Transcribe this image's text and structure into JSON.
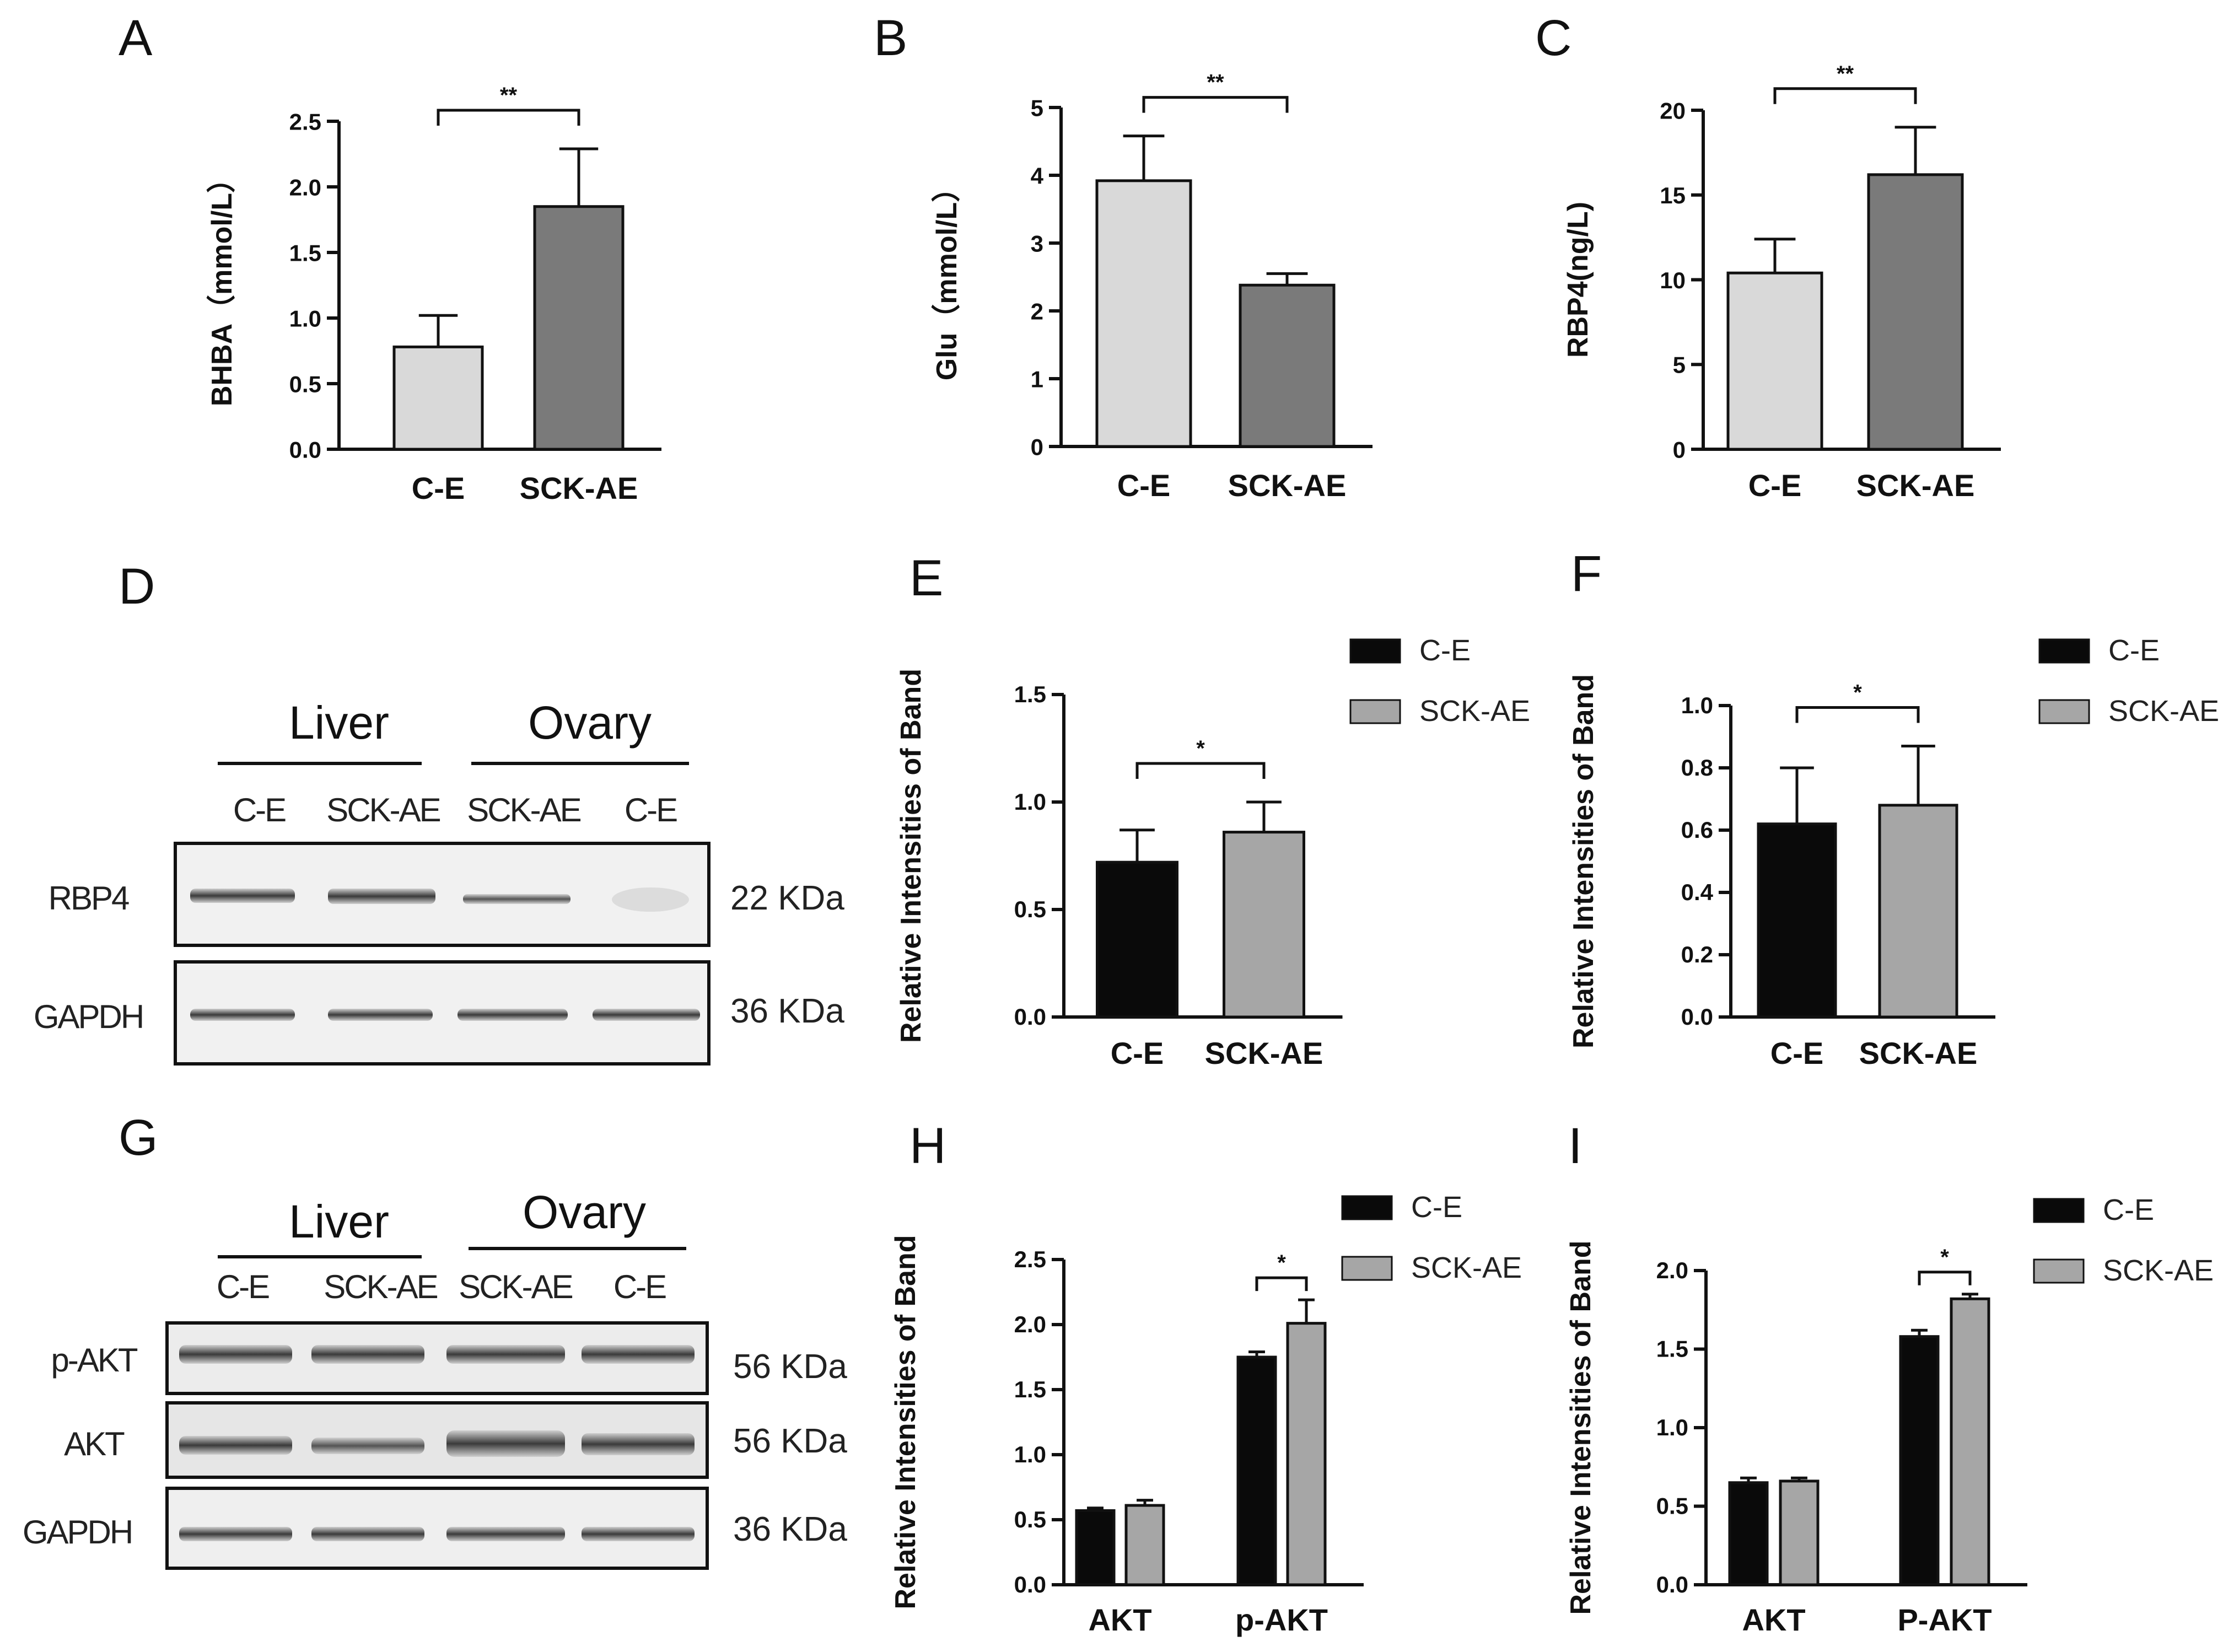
{
  "panel_labels": {
    "A": "A",
    "B": "B",
    "C": "C",
    "D": "D",
    "E": "E",
    "F": "F",
    "G": "G",
    "H": "H",
    "I": "I"
  },
  "colors": {
    "ce_gray": "#d9d9d9",
    "sck_gray": "#7a7a7a",
    "ce_black": "#0a0a0a",
    "sck_light": "#a6a6a6",
    "axis": "#111111"
  },
  "blot_D": {
    "tissues": [
      "Liver",
      "Ovary"
    ],
    "lanes": [
      "C-E",
      "SCK-AE",
      "SCK-AE",
      "C-E"
    ],
    "rows": [
      {
        "label": "RBP4",
        "kda": "22 KDa"
      },
      {
        "label": "GAPDH",
        "kda": "36 KDa"
      }
    ]
  },
  "blot_G": {
    "tissues": [
      "Liver",
      "Ovary"
    ],
    "lanes": [
      "C-E",
      "SCK-AE",
      "SCK-AE",
      "C-E"
    ],
    "rows": [
      {
        "label": "p-AKT",
        "kda": "56 KDa"
      },
      {
        "label": "AKT",
        "kda": "56 KDa"
      },
      {
        "label": "GAPDH",
        "kda": "36 KDa"
      }
    ]
  },
  "chart_data": [
    {
      "id": "A",
      "type": "bar",
      "categories": [
        "C-E",
        "SCK-AE"
      ],
      "values": [
        0.78,
        1.85
      ],
      "errors": [
        0.24,
        0.44
      ],
      "ylabel": "BHBA（mmol/L）",
      "ylim": [
        0,
        2.5
      ],
      "yticks": [
        "0.0",
        "0.5",
        "1.0",
        "1.5",
        "2.0",
        "2.5"
      ],
      "significance": "**"
    },
    {
      "id": "B",
      "type": "bar",
      "categories": [
        "C-E",
        "SCK-AE"
      ],
      "values": [
        3.92,
        2.38
      ],
      "errors": [
        0.66,
        0.17
      ],
      "ylabel": "Glu（mmol/L）",
      "ylim": [
        0,
        5
      ],
      "yticks": [
        "0",
        "1",
        "2",
        "3",
        "4",
        "5"
      ],
      "significance": "**"
    },
    {
      "id": "C",
      "type": "bar",
      "categories": [
        "C-E",
        "SCK-AE"
      ],
      "values": [
        10.4,
        16.2
      ],
      "errors": [
        2.0,
        2.8
      ],
      "ylabel": "RBP4(ng/L)",
      "ylim": [
        0,
        20
      ],
      "yticks": [
        "0",
        "5",
        "10",
        "15",
        "20"
      ],
      "significance": "**"
    },
    {
      "id": "E",
      "type": "bar",
      "categories": [
        "C-E",
        "SCK-AE"
      ],
      "values": [
        0.72,
        0.86
      ],
      "errors": [
        0.15,
        0.14
      ],
      "ylabel": "Relative Intensities of Band",
      "ylim": [
        0,
        1.5
      ],
      "yticks": [
        "0.0",
        "0.5",
        "1.0",
        "1.5"
      ],
      "significance": "*",
      "legend": [
        "C-E",
        "SCK-AE"
      ]
    },
    {
      "id": "F",
      "type": "bar",
      "categories": [
        "C-E",
        "SCK-AE"
      ],
      "values": [
        0.62,
        0.68
      ],
      "errors": [
        0.18,
        0.19
      ],
      "ylabel": "Relative Intensities of Band",
      "ylim": [
        0,
        1.0
      ],
      "yticks": [
        "0.0",
        "0.2",
        "0.4",
        "0.6",
        "0.8",
        "1.0"
      ],
      "significance": "*",
      "legend": [
        "C-E",
        "SCK-AE"
      ]
    },
    {
      "id": "H",
      "type": "bar",
      "categories": [
        "AKT",
        "p-AKT"
      ],
      "series": [
        {
          "name": "C-E",
          "values": [
            0.57,
            1.75
          ],
          "errors": [
            0.02,
            0.04
          ]
        },
        {
          "name": "SCK-AE",
          "values": [
            0.61,
            2.01
          ],
          "errors": [
            0.04,
            0.18
          ]
        }
      ],
      "ylabel": "Relative Intensities of Band",
      "ylim": [
        0,
        2.5
      ],
      "yticks": [
        "0.0",
        "0.5",
        "1.0",
        "1.5",
        "2.0",
        "2.5"
      ],
      "significance": "*",
      "legend": [
        "C-E",
        "SCK-AE"
      ]
    },
    {
      "id": "I",
      "type": "bar",
      "categories": [
        "AKT",
        "P-AKT"
      ],
      "series": [
        {
          "name": "C-E",
          "values": [
            0.65,
            1.58
          ],
          "errors": [
            0.03,
            0.04
          ]
        },
        {
          "name": "SCK-AE",
          "values": [
            0.66,
            1.82
          ],
          "errors": [
            0.02,
            0.03
          ]
        }
      ],
      "ylabel": "Relative Intensities of Band",
      "ylim": [
        0,
        2.0
      ],
      "yticks": [
        "0.0",
        "0.5",
        "1.0",
        "1.5",
        "2.0"
      ],
      "significance": "*",
      "legend": [
        "C-E",
        "SCK-AE"
      ]
    }
  ]
}
